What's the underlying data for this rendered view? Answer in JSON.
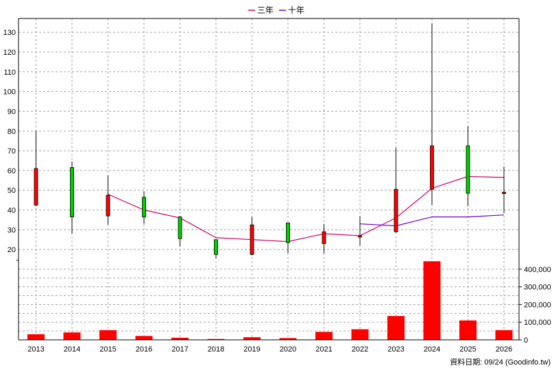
{
  "chart_data": {
    "type": "candlestick",
    "categories": [
      "2013",
      "2014",
      "2015",
      "2016",
      "2017",
      "2018",
      "2019",
      "2020",
      "2021",
      "2022",
      "2023",
      "2024",
      "2025",
      "2026"
    ],
    "candles": [
      {
        "open": 42.5,
        "close": 61,
        "high": 80,
        "low": 42
      },
      {
        "open": 61.5,
        "close": 36.5,
        "high": 64.5,
        "low": 28
      },
      {
        "open": 37,
        "close": 47.5,
        "high": 57.5,
        "low": 32.5
      },
      {
        "open": 46.5,
        "close": 36.5,
        "high": 49.5,
        "low": 33
      },
      {
        "open": 36.5,
        "close": 25.5,
        "high": 37,
        "low": 21.5
      },
      {
        "open": 25,
        "close": 17.5,
        "high": 25,
        "low": 15.5
      },
      {
        "open": 17.5,
        "close": 32.5,
        "high": 36.5,
        "low": 17
      },
      {
        "open": 33.5,
        "close": 23.5,
        "high": 33.5,
        "low": 18
      },
      {
        "open": 23,
        "close": 29,
        "high": 33,
        "low": 18
      },
      {
        "open": 27,
        "close": 27,
        "high": 37,
        "low": 22
      },
      {
        "open": 29,
        "close": 50.5,
        "high": 71.5,
        "low": 28.5
      },
      {
        "open": 50.5,
        "close": 72.5,
        "high": 134.5,
        "low": 42.5
      },
      {
        "open": 72.5,
        "close": 48.5,
        "high": 82.5,
        "low": 42
      },
      {
        "open": 48.5,
        "close": 49,
        "high": 62,
        "low": 38.5
      }
    ],
    "series": [
      {
        "name": "三年",
        "color": "#cc0066",
        "values": [
          null,
          null,
          48,
          40,
          36,
          26,
          25,
          24,
          28,
          27,
          36,
          51,
          57,
          56.5
        ]
      },
      {
        "name": "十年",
        "color": "#6600cc",
        "values": [
          null,
          null,
          null,
          null,
          null,
          null,
          null,
          null,
          null,
          33,
          32,
          36.5,
          36.5,
          37.5
        ]
      }
    ],
    "volume": [
      32000,
      42000,
      55000,
      22000,
      12000,
      5000,
      15000,
      10000,
      45000,
      60000,
      135000,
      445000,
      110000,
      55000
    ],
    "price_ticks": [
      20,
      30,
      40,
      50,
      60,
      70,
      80,
      90,
      100,
      110,
      120,
      130
    ],
    "volume_ticks": [
      0,
      100000,
      200000,
      300000,
      400000
    ],
    "volume_tick_labels": [
      "0",
      "100,000",
      "200,000",
      "300,000",
      "400,000"
    ],
    "ylim": [
      14.5,
      137
    ],
    "volume_max": 450000,
    "grid": true,
    "legend_position": "top-center",
    "colors": {
      "up": "#ff0000",
      "down": "#00cc00",
      "volume": "#ff0000",
      "grid": "#a0a0a0"
    },
    "note": "資料日期: 09/24  (Goodinfo.tw)"
  }
}
